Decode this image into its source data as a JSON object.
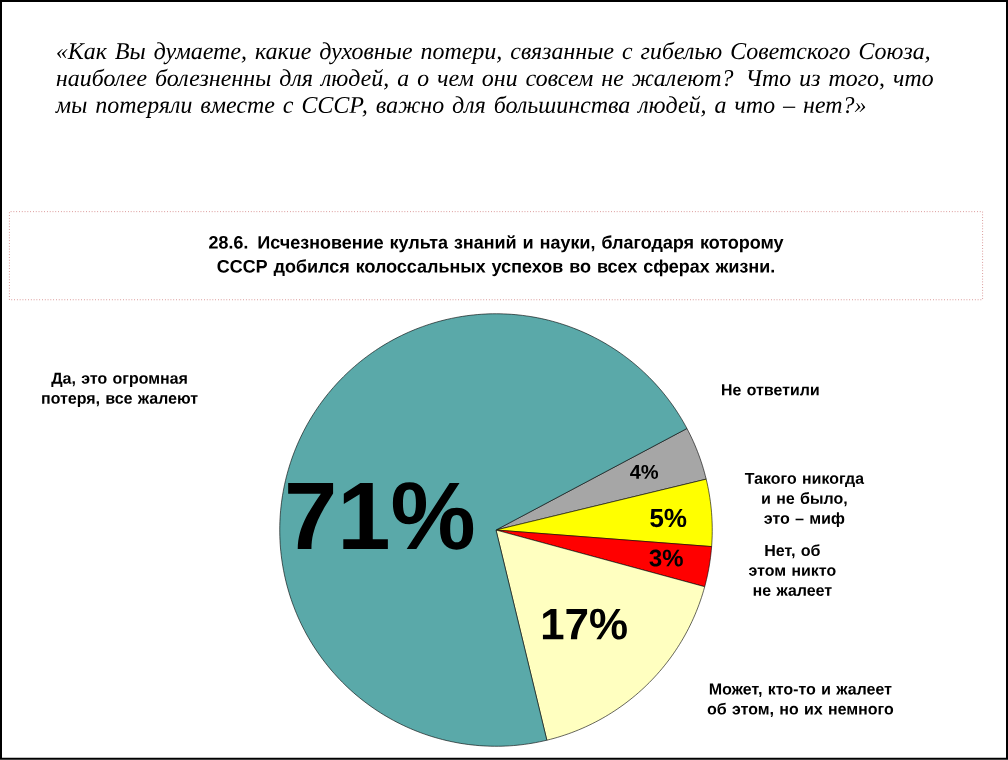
{
  "chart_data": {
    "type": "pie",
    "title": "«Как Вы думаете, какие духовные потери, связанные с гибелью Советского Союза, наиболее болезненны для людей, а о чем они совсем не жалеют? Что из того, что мы потеряли вместе с СССР, важно для большинства людей, а что – нет?»",
    "subtitle": "28.6. Исчезновение культа знаний и науки, благодаря которому СССР  добился колоссальных успехов во всех сферах жизни.",
    "categories": [
      "Не ответили",
      "Такого никогда и не было, это – миф",
      "Нет, об этом никто не жалеет",
      "Может, кто-то и жалеет об этом, но их немного",
      "Да, это огромная потеря, все жалеют"
    ],
    "values": [
      4,
      5,
      3,
      17,
      71
    ],
    "colors": [
      "#a6a6a6",
      "#ffff00",
      "#ff0000",
      "#ffffc0",
      "#5aa9a9"
    ],
    "value_labels": [
      "4%",
      "5%",
      "3%",
      "17%",
      "71%"
    ]
  }
}
